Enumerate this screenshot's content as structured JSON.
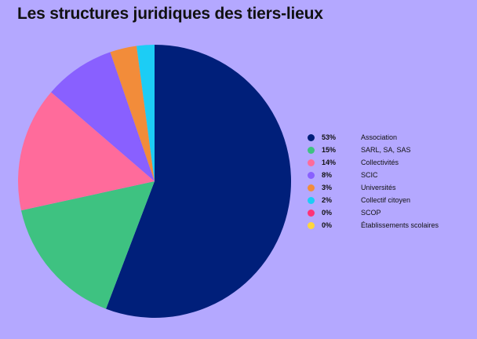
{
  "chart_data": {
    "type": "pie",
    "title": "Les structures juridiques des tiers-lieux",
    "legend_position": "right",
    "slices": [
      {
        "label": "Association",
        "value": 53,
        "display": "53%",
        "color": "#001f7a"
      },
      {
        "label": "SARL, SA, SAS",
        "value": 15,
        "display": "15%",
        "color": "#3ec281"
      },
      {
        "label": "Collectivités",
        "value": 14,
        "display": "14%",
        "color": "#ff6b9b"
      },
      {
        "label": "SCIC",
        "value": 8,
        "display": "8%",
        "color": "#8960ff"
      },
      {
        "label": "Universités",
        "value": 3,
        "display": "3%",
        "color": "#f28c3a"
      },
      {
        "label": "Collectif citoyen",
        "value": 2,
        "display": "2%",
        "color": "#1ccdf5"
      },
      {
        "label": "SCOP",
        "value": 0,
        "display": "0%",
        "color": "#ff3377"
      },
      {
        "label": "Établissements scolaires",
        "value": 0,
        "display": "0%",
        "color": "#ffd63d"
      }
    ]
  }
}
